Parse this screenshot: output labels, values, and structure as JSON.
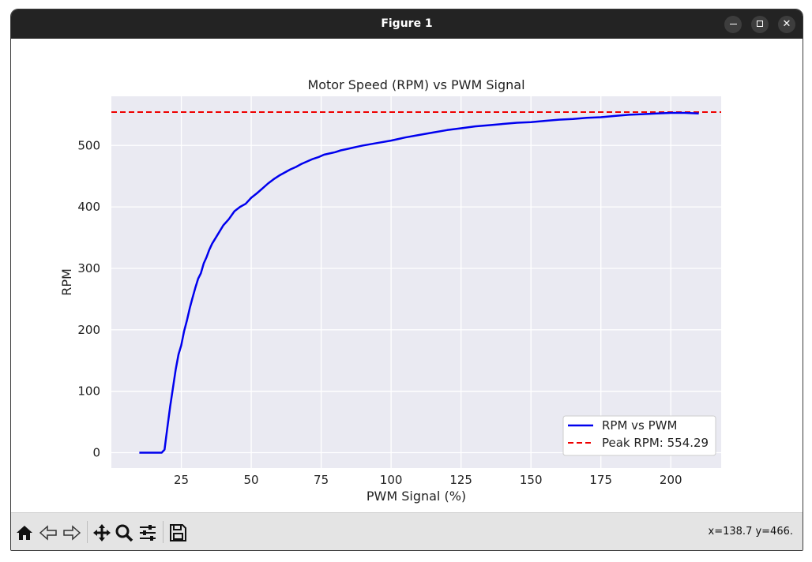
{
  "window": {
    "title": "Figure 1"
  },
  "toolbar": {
    "tools": [
      {
        "name": "home-icon"
      },
      {
        "name": "back-arrow-icon"
      },
      {
        "name": "forward-arrow-icon"
      },
      {
        "name": "pan-move-icon"
      },
      {
        "name": "zoom-magnifier-icon"
      },
      {
        "name": "configure-subplots-icon"
      },
      {
        "name": "save-floppy-icon"
      }
    ],
    "coords": "x=138.7 y=466."
  },
  "colors": {
    "line": "#0000ee",
    "peak": "#ee0000",
    "plot_bg": "#eaeaf2",
    "grid": "#ffffff"
  },
  "chart_data": {
    "type": "line",
    "title": "Motor Speed (RPM) vs PWM Signal",
    "xlabel": "PWM Signal (%)",
    "ylabel": "RPM",
    "xlim": [
      0,
      218
    ],
    "ylim": [
      -25,
      580
    ],
    "xticks": [
      25,
      50,
      75,
      100,
      125,
      150,
      175,
      200
    ],
    "yticks": [
      0,
      100,
      200,
      300,
      400,
      500
    ],
    "grid": true,
    "legend_position": "lower right",
    "series": [
      {
        "name": "RPM vs PWM",
        "style": "solid",
        "color": "#0000ee",
        "x": [
          10,
          14,
          18,
          19,
          20,
          21,
          22,
          23,
          24,
          25,
          26,
          27,
          28,
          29,
          30,
          31,
          32,
          33,
          34,
          35,
          36,
          38,
          40,
          42,
          44,
          46,
          48,
          50,
          52,
          54,
          56,
          58,
          60,
          62,
          64,
          66,
          68,
          70,
          72,
          74,
          76,
          78,
          80,
          82,
          84,
          86,
          88,
          90,
          95,
          100,
          105,
          110,
          115,
          120,
          125,
          130,
          135,
          140,
          145,
          150,
          155,
          160,
          165,
          170,
          175,
          180,
          185,
          190,
          195,
          200,
          205,
          210
        ],
        "y": [
          0,
          0,
          0,
          5,
          40,
          75,
          105,
          135,
          160,
          175,
          198,
          215,
          235,
          252,
          268,
          283,
          292,
          308,
          318,
          330,
          340,
          355,
          370,
          380,
          393,
          400,
          405,
          415,
          422,
          430,
          438,
          445,
          451,
          456,
          461,
          465,
          470,
          474,
          478,
          481,
          485,
          487,
          489,
          492,
          494,
          496,
          498,
          500,
          504,
          508,
          513,
          517,
          521,
          525,
          528,
          531,
          533,
          535,
          537,
          538,
          540,
          542,
          543,
          545,
          546,
          548,
          550,
          551,
          552,
          553,
          553,
          552
        ]
      },
      {
        "name": "Peak RPM: 554.29",
        "style": "dashed",
        "color": "#ee0000",
        "constant_y": 554.29
      }
    ]
  }
}
